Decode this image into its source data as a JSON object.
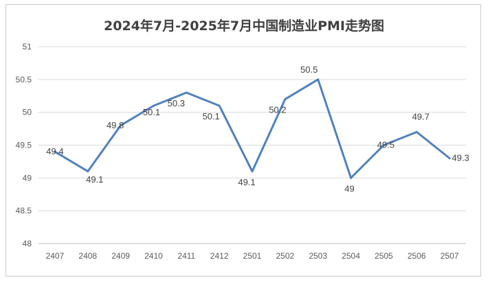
{
  "chart_data": {
    "type": "line",
    "title": "2024年7月-2025年7月中国制造业PMI走势图",
    "categories": [
      "2407",
      "2408",
      "2409",
      "2410",
      "2411",
      "2412",
      "2501",
      "2502",
      "2503",
      "2504",
      "2505",
      "2506",
      "2507"
    ],
    "series": [
      {
        "values": [
          49.4,
          49.1,
          49.8,
          50.1,
          50.3,
          50.1,
          49.1,
          50.2,
          50.5,
          49.0,
          49.5,
          49.7,
          49.3
        ]
      }
    ],
    "data_labels": [
      "49.4",
      "49.1",
      "49.8",
      "50.1",
      "50.3",
      "50.1",
      "49.1",
      "50.2",
      "50.5",
      "49",
      "49.5",
      "49.7",
      "49.3"
    ],
    "yticks": [
      "48",
      "48.5",
      "49",
      "49.5",
      "50",
      "50.5",
      "51"
    ],
    "ylim": [
      48,
      51
    ],
    "grid": true,
    "legend": "none",
    "line_color": "#4f81bd"
  }
}
